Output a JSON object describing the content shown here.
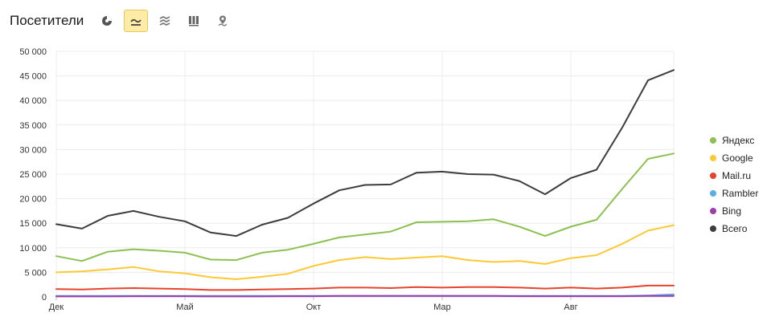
{
  "header": {
    "title": "Посетители",
    "tools": [
      {
        "name": "pie-chart-icon",
        "active": false
      },
      {
        "name": "line-chart-icon",
        "active": true
      },
      {
        "name": "area-chart-icon",
        "active": false
      },
      {
        "name": "bar-chart-icon",
        "active": false
      },
      {
        "name": "map-icon",
        "active": false
      }
    ]
  },
  "colors": {
    "Яндекс": "#8cc152",
    "Google": "#fcc934",
    "Mail.ru": "#e8432b",
    "Rambler": "#5aaee4",
    "Bing": "#9b3dac",
    "Всего": "#3d3d3d"
  },
  "chart_data": {
    "type": "line",
    "title": "",
    "xlabel": "",
    "ylabel": "",
    "ylim": [
      0,
      50000
    ],
    "yticks": [
      "50 000",
      "45 000",
      "40 000",
      "35 000",
      "30 000",
      "25 000",
      "20 000",
      "15 000",
      "10 000",
      "5 000",
      "0"
    ],
    "xtick_labels": [
      "Дек",
      "Май",
      "Окт",
      "Мар",
      "Авг"
    ],
    "xtick_index": [
      0,
      5,
      10,
      15,
      20
    ],
    "grid": true,
    "legend_position": "right",
    "series": [
      {
        "name": "Яндекс",
        "values": [
          8300,
          7300,
          9200,
          9700,
          9400,
          9000,
          7600,
          7500,
          9000,
          9600,
          10800,
          12100,
          12700,
          13300,
          15200,
          15300,
          15400,
          15800,
          14300,
          12400,
          14300,
          15700,
          22000,
          28100,
          29200
        ]
      },
      {
        "name": "Google",
        "values": [
          5000,
          5200,
          5600,
          6100,
          5200,
          4800,
          4000,
          3600,
          4100,
          4700,
          6300,
          7500,
          8100,
          7700,
          8000,
          8300,
          7500,
          7100,
          7300,
          6700,
          7900,
          8500,
          10800,
          13500,
          14600
        ]
      },
      {
        "name": "Mail.ru",
        "values": [
          1600,
          1500,
          1700,
          1800,
          1700,
          1600,
          1400,
          1400,
          1500,
          1600,
          1700,
          1900,
          1900,
          1800,
          2000,
          1900,
          2000,
          2000,
          1900,
          1700,
          1900,
          1700,
          1900,
          2300,
          2300
        ]
      },
      {
        "name": "Rambler",
        "values": [
          200,
          200,
          200,
          200,
          200,
          200,
          200,
          200,
          200,
          200,
          200,
          200,
          200,
          200,
          200,
          200,
          200,
          200,
          200,
          200,
          200,
          200,
          200,
          300,
          500
        ]
      },
      {
        "name": "Bing",
        "values": [
          100,
          100,
          100,
          150,
          150,
          150,
          100,
          100,
          100,
          150,
          150,
          200,
          200,
          200,
          200,
          200,
          200,
          200,
          150,
          150,
          150,
          150,
          150,
          200,
          200
        ]
      },
      {
        "name": "Всего",
        "values": [
          14800,
          13900,
          16500,
          17500,
          16300,
          15400,
          13100,
          12400,
          14700,
          16100,
          19000,
          21700,
          22800,
          22900,
          25300,
          25500,
          25000,
          24900,
          23600,
          20900,
          24200,
          25900,
          34500,
          44100,
          46200
        ]
      }
    ]
  }
}
